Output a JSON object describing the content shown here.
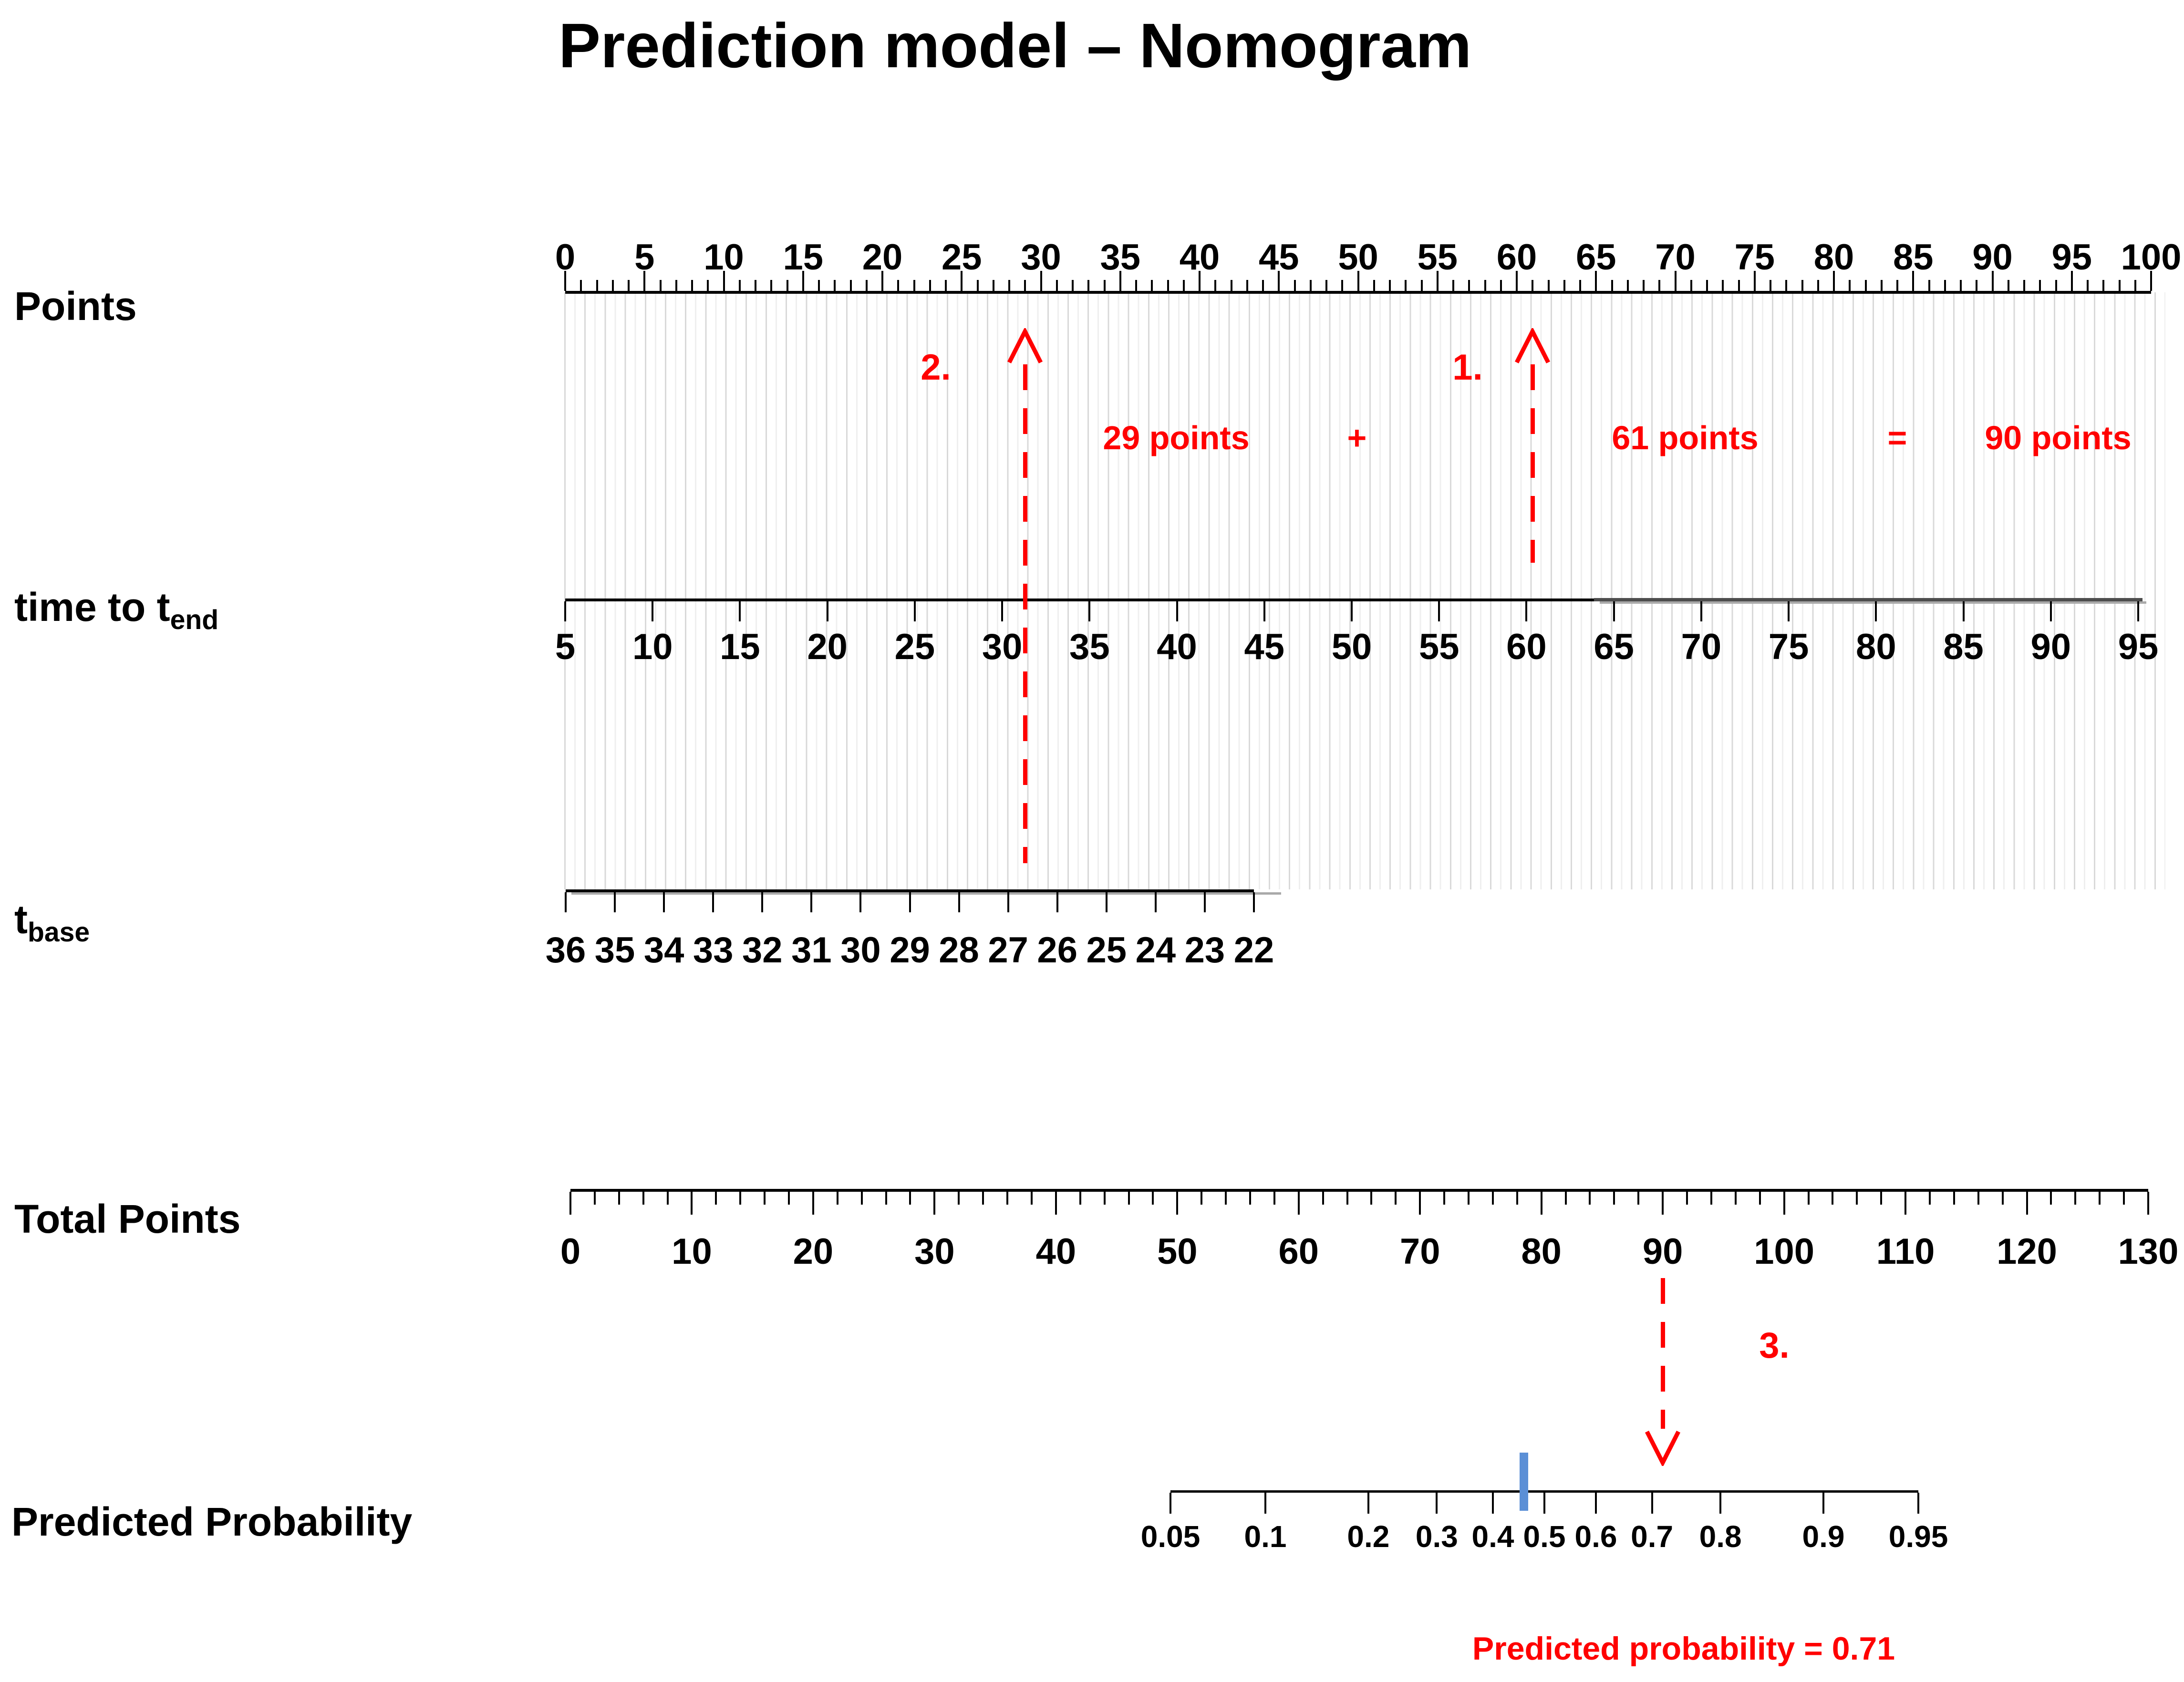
{
  "title": "Prediction model – Nomogram",
  "labels": {
    "points": "Points",
    "time_to_tend_main": "time to t",
    "time_to_tend_sub": "end",
    "tbase_main": "t",
    "tbase_sub": "base",
    "total_points": "Total Points",
    "predicted_probability": "Predicted Probability"
  },
  "chart_data": {
    "type": "nomogram",
    "title": "Prediction model – Nomogram",
    "axes": [
      {
        "id": "points",
        "label": "Points",
        "min": 0,
        "max": 100,
        "major_step": 5,
        "minor_step": 1,
        "tick_side": "up",
        "tick_labels": [
          "0",
          "5",
          "10",
          "15",
          "20",
          "25",
          "30",
          "35",
          "40",
          "45",
          "50",
          "55",
          "60",
          "65",
          "70",
          "75",
          "80",
          "85",
          "90",
          "95",
          "100"
        ]
      },
      {
        "id": "time_to_tend",
        "label": "time to t_end",
        "min": 5,
        "max": 95,
        "major_step": 5,
        "tick_side": "down",
        "tick_labels": [
          "5",
          "10",
          "15",
          "20",
          "25",
          "30",
          "35",
          "40",
          "45",
          "50",
          "55",
          "60",
          "65",
          "70",
          "75",
          "80",
          "85",
          "90",
          "95"
        ]
      },
      {
        "id": "tbase",
        "label": "t_base",
        "min": 36,
        "max": 22,
        "major_step": 1,
        "tick_side": "down",
        "tick_labels": [
          "36",
          "35",
          "34",
          "33",
          "32",
          "31",
          "30",
          "29",
          "28",
          "27",
          "26",
          "25",
          "24",
          "23",
          "22"
        ]
      },
      {
        "id": "total_points",
        "label": "Total Points",
        "min": 0,
        "max": 130,
        "major_step": 10,
        "minor_step": 2,
        "tick_side": "down",
        "tick_labels": [
          "0",
          "10",
          "20",
          "30",
          "40",
          "50",
          "60",
          "70",
          "80",
          "90",
          "100",
          "110",
          "120",
          "130"
        ]
      },
      {
        "id": "predicted_probability",
        "label": "Predicted Probability",
        "scale": "logit",
        "tick_side": "down",
        "tick_values": [
          0.05,
          0.1,
          0.2,
          0.3,
          0.4,
          0.5,
          0.6,
          0.7,
          0.8,
          0.9,
          0.95
        ],
        "tick_labels": [
          "0.05",
          "0.1",
          "0.2",
          "0.3",
          "0.4",
          "0.5",
          "0.6",
          "0.7",
          "0.8",
          "0.9",
          "0.95"
        ]
      }
    ],
    "annotations": {
      "step1": {
        "label": "1.",
        "points_value": 61
      },
      "step2": {
        "label": "2.",
        "points_value": 29,
        "tbase_value": 26.5
      },
      "step3": {
        "label": "3.",
        "total_points_value": 90,
        "probability_value": 0.7
      },
      "equation": [
        "29 points",
        "+",
        "61 points",
        "=",
        "90 points"
      ],
      "result": "Predicted probability = 0.71",
      "reference_marker_probability": 0.46
    },
    "colors": {
      "annotation_red": "#ff0000",
      "marker_blue": "#5b8fd6",
      "axis_black": "#000000",
      "axis_gray_dark": "#4d4d4d",
      "axis_gray_light": "#a9a9a9",
      "grid_dark": "#d9d9d9",
      "grid_light": "#efefef"
    }
  }
}
